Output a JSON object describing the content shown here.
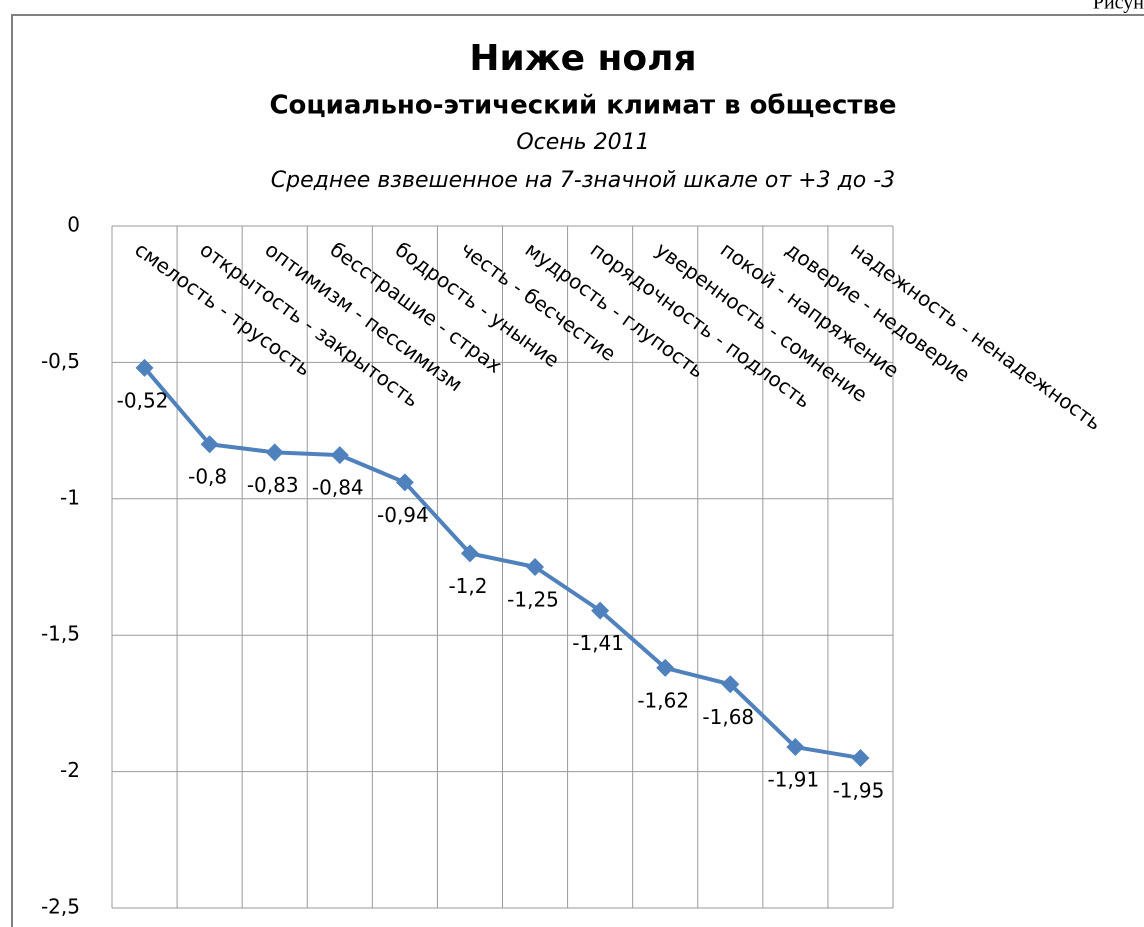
{
  "caption_fragment": "Рисун",
  "chart_data": {
    "type": "line",
    "title": "Ниже ноля",
    "subtitle": "Социально-этический климат в обществе",
    "period": "Осень 2011",
    "note": "Среднее взвешенное на 7-значной шкале от +3 до -3",
    "categories": [
      "смелость - трусость",
      "открытость - закрытость",
      "оптимизм - пессимизм",
      "бесстрашие - страх",
      "бодрость - уныние",
      "честь - бесчестие",
      "мудрость - глупость",
      "порядочность - подлость",
      "уверенность - сомнение",
      "покой - напряжение",
      "доверие - недоверие",
      "надежность - ненадежность"
    ],
    "series": [
      {
        "color": "#4f81bd",
        "values": [
          -0.52,
          -0.8,
          -0.83,
          -0.84,
          -0.94,
          -1.2,
          -1.25,
          -1.41,
          -1.62,
          -1.68,
          -1.91,
          -1.95
        ],
        "value_labels": [
          "-0,52",
          "-0,8",
          "-0,83",
          "-0,84",
          "-0,94",
          "-1,2",
          "-1,25",
          "-1,41",
          "-1,62",
          "-1,68",
          "-1,91",
          "-1,95"
        ]
      }
    ],
    "ylim": [
      -2.5,
      0
    ],
    "yticks": [
      0,
      {
        "value": -0.5,
        "label": "-0,5"
      },
      -1,
      {
        "value": -1.5,
        "label": "-1,5"
      },
      -2,
      {
        "value": -2.5,
        "label": "-2,5"
      }
    ],
    "grid": true
  }
}
